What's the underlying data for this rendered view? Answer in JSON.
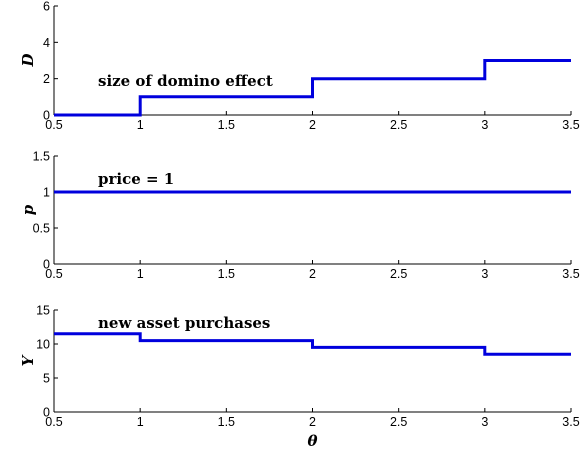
{
  "chart_data": [
    {
      "type": "line",
      "xlim": [
        0.5,
        3.5
      ],
      "ylim": [
        0,
        6
      ],
      "xticks": [
        "0.5",
        "1",
        "1.5",
        "2",
        "2.5",
        "3",
        "3.5"
      ],
      "yticks": [
        "0",
        "2",
        "4",
        "6"
      ],
      "ylabel": "D",
      "xlabel": "",
      "annotation": "size of domino effect",
      "color": "#0000dd",
      "series": [
        {
          "x": [
            0.5,
            1,
            1,
            2,
            2,
            3,
            3,
            3.5
          ],
          "y": [
            0,
            0,
            1,
            1,
            2,
            2,
            3,
            3
          ]
        }
      ]
    },
    {
      "type": "line",
      "xlim": [
        0.5,
        3.5
      ],
      "ylim": [
        0,
        1.5
      ],
      "xticks": [
        "0.5",
        "1",
        "1.5",
        "2",
        "2.5",
        "3",
        "3.5"
      ],
      "yticks": [
        "0",
        "0.5",
        "1",
        "1.5"
      ],
      "ylabel": "p",
      "xlabel": "",
      "annotation": "price = 1",
      "color": "#0000dd",
      "series": [
        {
          "x": [
            0.5,
            3.5
          ],
          "y": [
            1,
            1
          ]
        }
      ]
    },
    {
      "type": "line",
      "xlim": [
        0.5,
        3.5
      ],
      "ylim": [
        0,
        15
      ],
      "xticks": [
        "0.5",
        "1",
        "1.5",
        "2",
        "2.5",
        "3",
        "3.5"
      ],
      "yticks": [
        "0",
        "5",
        "10",
        "15"
      ],
      "ylabel": "Y",
      "xlabel": "θ",
      "annotation": "new asset purchases",
      "color": "#0000dd",
      "series": [
        {
          "x": [
            0.5,
            1,
            1,
            2,
            2,
            3,
            3,
            3.5
          ],
          "y": [
            11.5,
            11.5,
            10.5,
            10.5,
            9.5,
            9.5,
            8.5,
            8.5
          ]
        }
      ]
    }
  ]
}
